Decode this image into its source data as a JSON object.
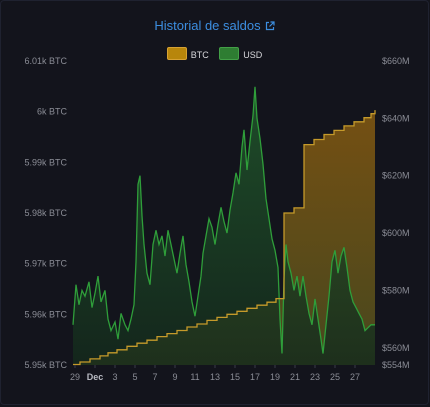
{
  "title": "Historial de saldos",
  "title_icon": "external-link-icon",
  "colors": {
    "background": "#13141c",
    "title": "#3c8ee0",
    "btc_line": "#c59a2a",
    "btc_fill": "#7a5312",
    "usd_line": "#2f9e3a",
    "usd_fill": "#1c4a26",
    "tick": "#8b8d96"
  },
  "chart_data": {
    "type": "area",
    "title": "Historial de saldos",
    "legend_position": "top-center",
    "grid": false,
    "x_tick_labels": [
      "29",
      "Dec",
      "3",
      "5",
      "7",
      "9",
      "11",
      "13",
      "15",
      "17",
      "19",
      "21",
      "23",
      "25",
      "27"
    ],
    "x_tick_days": [
      -2,
      0,
      2,
      4,
      6,
      8,
      10,
      12,
      14,
      16,
      18,
      20,
      22,
      24,
      26
    ],
    "x_range_days": [
      -2.2,
      28.0
    ],
    "left_axis": {
      "series": "BTC",
      "range": [
        5.95,
        6.01
      ],
      "ticks": [
        5.95,
        5.96,
        5.97,
        5.98,
        5.99,
        6.0,
        6.01
      ],
      "tick_labels": [
        "5.95k BTC",
        "5.96k BTC",
        "5.97k BTC",
        "5.98k BTC",
        "5.99k BTC",
        "6k BTC",
        "6.01k BTC"
      ]
    },
    "right_axis": {
      "series": "USD",
      "range": [
        554,
        660
      ],
      "ticks": [
        554,
        560,
        580,
        600,
        620,
        640,
        660
      ],
      "tick_labels": [
        "$554M",
        "$560M",
        "$580M",
        "$600M",
        "$620M",
        "$640M",
        "$660M"
      ]
    },
    "series": [
      {
        "name": "BTC",
        "unit": "k BTC",
        "axis": "left",
        "step": true,
        "points": [
          [
            -2.2,
            5.9501
          ],
          [
            -1.5,
            5.9506
          ],
          [
            -0.5,
            5.9512
          ],
          [
            0.5,
            5.9518
          ],
          [
            1.3,
            5.9524
          ],
          [
            2.2,
            5.953
          ],
          [
            3.2,
            5.9537
          ],
          [
            4.2,
            5.9543
          ],
          [
            5.2,
            5.9549
          ],
          [
            6.2,
            5.9556
          ],
          [
            7.2,
            5.9562
          ],
          [
            8.2,
            5.9568
          ],
          [
            9.2,
            5.9575
          ],
          [
            10.2,
            5.9581
          ],
          [
            11.2,
            5.9588
          ],
          [
            12.2,
            5.9594
          ],
          [
            13.2,
            5.96
          ],
          [
            14.2,
            5.9606
          ],
          [
            15.2,
            5.9612
          ],
          [
            16.2,
            5.9618
          ],
          [
            17.2,
            5.9624
          ],
          [
            18.1,
            5.9631
          ],
          [
            18.9,
            5.98
          ],
          [
            19.9,
            5.981
          ],
          [
            20.9,
            5.9935
          ],
          [
            21.9,
            5.9945
          ],
          [
            22.9,
            5.9955
          ],
          [
            23.9,
            5.9963
          ],
          [
            24.9,
            5.9972
          ],
          [
            25.9,
            5.998
          ],
          [
            26.9,
            5.9988
          ],
          [
            27.6,
            5.9996
          ],
          [
            28.0,
            6.0003
          ]
        ]
      },
      {
        "name": "USD",
        "unit": "$M",
        "axis": "right",
        "points": [
          [
            -2.2,
            568
          ],
          [
            -1.9,
            582
          ],
          [
            -1.6,
            575
          ],
          [
            -1.3,
            580
          ],
          [
            -1.0,
            578
          ],
          [
            -0.6,
            583
          ],
          [
            -0.3,
            574
          ],
          [
            0.0,
            579
          ],
          [
            0.3,
            585
          ],
          [
            0.6,
            576
          ],
          [
            1.0,
            580
          ],
          [
            1.3,
            570
          ],
          [
            1.6,
            566
          ],
          [
            2.0,
            569
          ],
          [
            2.3,
            563
          ],
          [
            2.6,
            572
          ],
          [
            3.0,
            568
          ],
          [
            3.3,
            566
          ],
          [
            3.6,
            570
          ],
          [
            3.9,
            575
          ],
          [
            4.1,
            590
          ],
          [
            4.3,
            617
          ],
          [
            4.5,
            620
          ],
          [
            4.7,
            606
          ],
          [
            4.9,
            596
          ],
          [
            5.2,
            586
          ],
          [
            5.5,
            582
          ],
          [
            5.8,
            596
          ],
          [
            6.1,
            601
          ],
          [
            6.4,
            596
          ],
          [
            6.7,
            599
          ],
          [
            7.0,
            592
          ],
          [
            7.3,
            601
          ],
          [
            7.6,
            596
          ],
          [
            7.9,
            591
          ],
          [
            8.2,
            586
          ],
          [
            8.5,
            593
          ],
          [
            8.8,
            599
          ],
          [
            9.1,
            589
          ],
          [
            9.4,
            583
          ],
          [
            9.7,
            576
          ],
          [
            10.0,
            571
          ],
          [
            10.3,
            578
          ],
          [
            10.6,
            585
          ],
          [
            10.8,
            593
          ],
          [
            11.1,
            599
          ],
          [
            11.4,
            605
          ],
          [
            11.7,
            602
          ],
          [
            12.0,
            596
          ],
          [
            12.3,
            603
          ],
          [
            12.6,
            609
          ],
          [
            12.9,
            604
          ],
          [
            13.2,
            600
          ],
          [
            13.5,
            608
          ],
          [
            13.8,
            614
          ],
          [
            14.1,
            621
          ],
          [
            14.4,
            617
          ],
          [
            14.7,
            630
          ],
          [
            14.9,
            636
          ],
          [
            15.2,
            622
          ],
          [
            15.5,
            632
          ],
          [
            15.8,
            641
          ],
          [
            16.0,
            651
          ],
          [
            16.2,
            640
          ],
          [
            16.5,
            633
          ],
          [
            16.8,
            624
          ],
          [
            17.1,
            612
          ],
          [
            17.4,
            605
          ],
          [
            17.7,
            598
          ],
          [
            18.0,
            594
          ],
          [
            18.3,
            588
          ],
          [
            18.5,
            570
          ],
          [
            18.7,
            558
          ],
          [
            18.9,
            584
          ],
          [
            19.1,
            596
          ],
          [
            19.3,
            590
          ],
          [
            19.6,
            586
          ],
          [
            19.9,
            580
          ],
          [
            20.2,
            585
          ],
          [
            20.5,
            578
          ],
          [
            20.8,
            585
          ],
          [
            21.1,
            578
          ],
          [
            21.4,
            572
          ],
          [
            21.7,
            568
          ],
          [
            22.0,
            577
          ],
          [
            22.3,
            570
          ],
          [
            22.6,
            563
          ],
          [
            22.8,
            558
          ],
          [
            23.1,
            568
          ],
          [
            23.4,
            578
          ],
          [
            23.7,
            590
          ],
          [
            24.0,
            594
          ],
          [
            24.3,
            586
          ],
          [
            24.6,
            592
          ],
          [
            24.9,
            595
          ],
          [
            25.2,
            588
          ],
          [
            25.5,
            580
          ],
          [
            25.8,
            576
          ],
          [
            26.1,
            574
          ],
          [
            26.4,
            572
          ],
          [
            26.7,
            570
          ],
          [
            27.0,
            566
          ],
          [
            27.3,
            567
          ],
          [
            27.6,
            568
          ],
          [
            28.0,
            568
          ]
        ]
      }
    ]
  }
}
